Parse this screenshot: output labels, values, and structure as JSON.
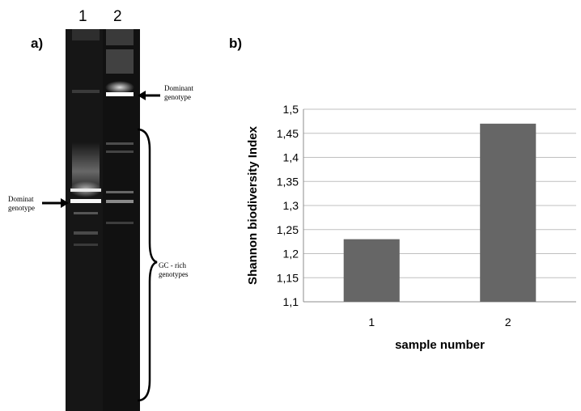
{
  "panel_a": {
    "label": "a)",
    "lanes": [
      "1",
      "2"
    ],
    "annotations": {
      "dominant_top": "Dominant genotype",
      "dominant_left": "Dominat genotype",
      "gc_rich": "GC - rich genotypes"
    },
    "colors": {
      "gel_background": "#0d0d0d",
      "band": "#ffffff"
    }
  },
  "panel_b": {
    "label": "b)"
  },
  "chart_data": {
    "type": "bar",
    "categories": [
      "1",
      "2"
    ],
    "values": [
      1.23,
      1.47
    ],
    "title": "",
    "xlabel": "sample number",
    "ylabel": "Shannon biodiversity Index",
    "ylim": [
      1.1,
      1.5
    ],
    "yticks": [
      "1,1",
      "1,15",
      "1,2",
      "1,25",
      "1,3",
      "1,35",
      "1,4",
      "1,45",
      "1,5"
    ],
    "grid": true,
    "bar_color": "#666666",
    "grid_color": "#bfbfbf"
  }
}
